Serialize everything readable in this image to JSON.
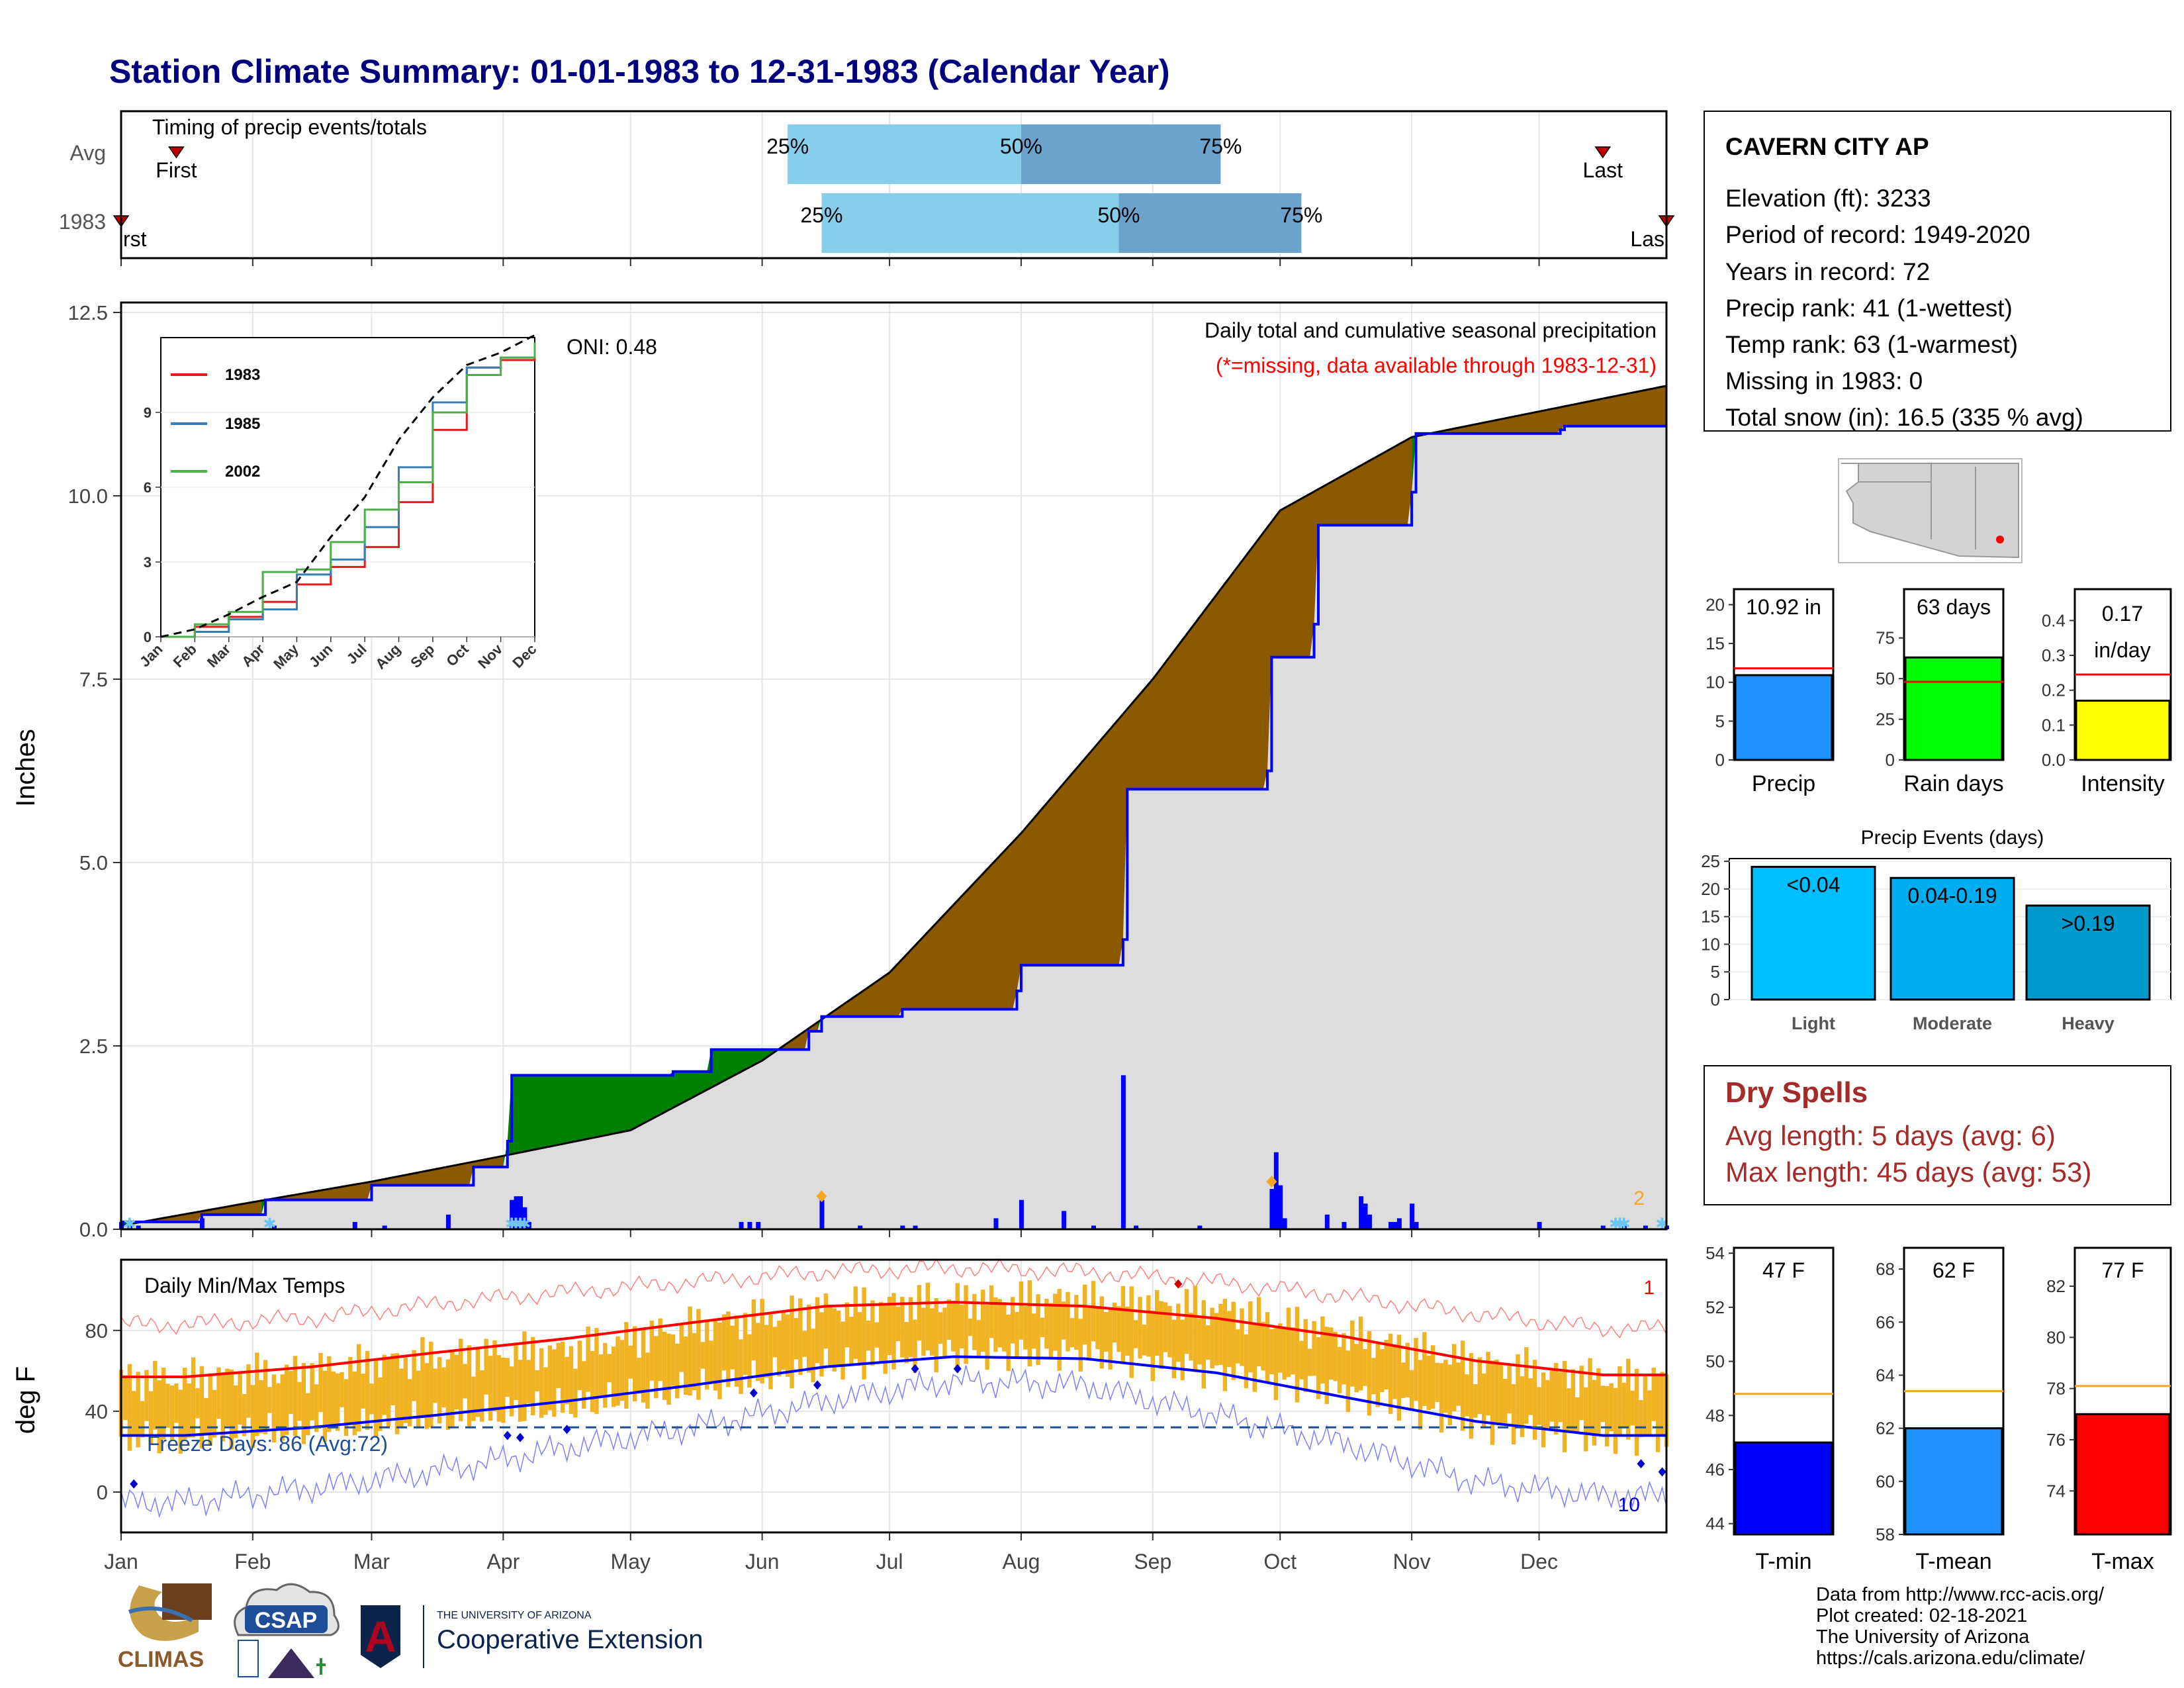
{
  "title": "Station Climate Summary: 01-01-1983 to 12-31-1983 (Calendar Year)",
  "months": [
    "Jan",
    "Feb",
    "Mar",
    "Apr",
    "May",
    "Jun",
    "Jul",
    "Aug",
    "Sep",
    "Oct",
    "Nov",
    "Dec"
  ],
  "colors": {
    "title": "#00007f",
    "quartile_light": "#87ceeb",
    "quartile_dark": "#6ba3cc",
    "cum_above": "#8b5a00",
    "cum_below": "#008000",
    "cum_fill": "#dddddd",
    "daily_bar": "#0000ff",
    "temp_range": "#f0b323",
    "avg_max": "#ff0000",
    "avg_min": "#0000ff",
    "dry_spells": "#a52a2a"
  },
  "timing": {
    "title": "Timing of precip events/totals",
    "rows": [
      "Avg",
      "1983"
    ],
    "first_label": "First",
    "last_label": "Last",
    "first_label_clipped": "rst",
    "last_label_clipped": "Las",
    "pct_labels": [
      "25%",
      "50%",
      "75%"
    ]
  },
  "main": {
    "ylabel": "Inches",
    "header": "Daily total and cumulative seasonal precipitation",
    "subheader": "(*=missing, data available through 1983-12-31)",
    "oni": "ONI: 0.48",
    "corner_count": "2"
  },
  "inset": {
    "legend": [
      "1983",
      "1985",
      "2002"
    ],
    "series_colors": [
      "#e41a1c",
      "#377eb8",
      "#4daf4a"
    ],
    "months": [
      "Jan",
      "Feb",
      "Mar",
      "Apr",
      "May",
      "Jun",
      "Jul",
      "Aug",
      "Sep",
      "Oct",
      "Nov",
      "Dec"
    ]
  },
  "temps": {
    "ylabel": "deg F",
    "title": "Daily Min/Max Temps",
    "freeze": "Freeze Days: 86 (Avg:72)",
    "corner_top": "1",
    "corner_bottom": "10"
  },
  "station": {
    "name": "CAVERN CITY AP",
    "lines": [
      "Elevation (ft): 3233",
      "Period of record: 1949-2020",
      "Years in record: 72",
      "Precip rank: 41 (1-wettest)",
      "Temp rank: 63 (1-warmest)",
      "Missing in 1983: 0",
      "Total snow (in): 16.5 (335 % avg)"
    ]
  },
  "mini_bars": [
    {
      "label": "Precip",
      "value_text": "10.92 in",
      "color": "#1e90ff"
    },
    {
      "label": "Rain days",
      "value_text": "63 days",
      "color": "#00ff00"
    },
    {
      "label": "Intensity",
      "value_text_1": "0.17",
      "value_text_2": "in/day",
      "color": "#ffff00"
    }
  ],
  "events": {
    "title": "Precip Events (days)",
    "labels": [
      "<0.04",
      "0.04-0.19",
      ">0.19"
    ],
    "categories": [
      "Light",
      "Moderate",
      "Heavy"
    ],
    "colors": [
      "#00bfff",
      "#00aeef",
      "#0099cc"
    ]
  },
  "dry_spells": {
    "title": "Dry Spells",
    "avg": "Avg length: 5 days (avg: 6)",
    "max": "Max length: 45 days (avg: 53)"
  },
  "temp_bars": [
    {
      "value_text": "47 F",
      "label": "T-min",
      "color": "#0000ff"
    },
    {
      "value_text": "62 F",
      "label": "T-mean",
      "color": "#1e90ff"
    },
    {
      "value_text": "77 F",
      "label": "T-max",
      "color": "#ff0000"
    }
  ],
  "credits": [
    "Data from http://www.rcc-acis.org/",
    "Plot created: 02-18-2021",
    "The University of Arizona",
    "https://cals.arizona.edu/climate/"
  ],
  "logos": {
    "climas": "CLIMAS",
    "csap": "CSAP",
    "ua_small": "THE UNIVERSITY OF ARIZONA",
    "ua_big": "Cooperative Extension",
    "ua_letter": "A"
  },
  "chart_data": [
    {
      "type": "bar",
      "title": "Timing of precip events/totals",
      "categories": [
        "Avg",
        "1983"
      ],
      "series": [
        {
          "name": "First",
          "values": [
            14,
            1
          ]
        },
        {
          "name": "25%",
          "values": [
            158,
            166
          ]
        },
        {
          "name": "50%",
          "values": [
            213,
            236
          ]
        },
        {
          "name": "75%",
          "values": [
            260,
            279
          ]
        },
        {
          "name": "Last",
          "values": [
            350,
            365
          ]
        }
      ],
      "xlim": [
        1,
        365
      ]
    },
    {
      "type": "area",
      "title": "Daily total and cumulative seasonal precipitation",
      "ylabel": "Inches",
      "ylim": [
        0,
        12.5
      ],
      "yticks": [
        0.0,
        2.5,
        5.0,
        7.5,
        10.0,
        12.5
      ],
      "series": [
        {
          "name": "1983",
          "x": [
            1,
            20,
            35,
            60,
            84,
            92,
            93,
            127,
            131,
            140,
            163,
            166,
            185,
            212,
            213,
            237,
            238,
            271,
            272,
            282,
            283,
            305,
            306,
            340,
            341,
            365
          ],
          "values": [
            0.1,
            0.2,
            0.4,
            0.6,
            0.85,
            1.2,
            2.1,
            2.1,
            2.15,
            2.45,
            2.7,
            2.9,
            3.0,
            3.25,
            3.6,
            3.95,
            6.0,
            6.25,
            7.8,
            8.25,
            9.6,
            10.05,
            10.85,
            10.9,
            10.95,
            10.95
          ]
        },
        {
          "name": "Average",
          "x": [
            1,
            30,
            60,
            91,
            121,
            152,
            182,
            213,
            244,
            274,
            305,
            335,
            365
          ],
          "values": [
            0.05,
            0.35,
            0.65,
            1.0,
            1.35,
            2.3,
            3.5,
            5.4,
            7.5,
            9.8,
            10.8,
            11.15,
            11.5
          ]
        }
      ],
      "daily_bars": {
        "x": [
          1,
          3,
          5,
          20,
          37,
          56,
          63,
          78,
          93,
          94,
          95,
          96,
          97,
          147,
          149,
          151,
          166,
          175,
          185,
          188,
          207,
          213,
          223,
          230,
          237,
          240,
          255,
          272,
          273,
          274,
          275,
          285,
          289,
          293,
          294,
          295,
          300,
          301,
          302,
          305,
          306,
          335,
          350,
          355,
          360,
          365
        ],
        "values": [
          0.1,
          0.05,
          0.05,
          0.15,
          0.05,
          0.1,
          0.05,
          0.2,
          0.4,
          0.45,
          0.45,
          0.3,
          0.1,
          0.1,
          0.1,
          0.1,
          0.4,
          0.05,
          0.05,
          0.05,
          0.15,
          0.4,
          0.25,
          0.05,
          2.1,
          0.05,
          0.05,
          0.55,
          1.05,
          0.6,
          0.15,
          0.2,
          0.1,
          0.45,
          0.35,
          0.2,
          0.1,
          0.1,
          0.15,
          0.35,
          0.1,
          0.1,
          0.05,
          0.1,
          0.05,
          0.05
        ]
      },
      "ONI": 0.48
    },
    {
      "type": "line",
      "title": "",
      "categories": [
        "Jan",
        "Feb",
        "Mar",
        "Apr",
        "May",
        "Jun",
        "Jul",
        "Aug",
        "Sep",
        "Oct",
        "Nov",
        "Dec"
      ],
      "ylim": [
        0,
        12
      ],
      "yticks": [
        0,
        3,
        6,
        9
      ],
      "series": [
        {
          "name": "1983",
          "values": [
            0.0,
            0.4,
            0.8,
            1.4,
            2.1,
            2.8,
            3.6,
            5.4,
            8.3,
            10.8,
            11.1,
            11.5
          ]
        },
        {
          "name": "1985",
          "values": [
            0.0,
            0.2,
            0.7,
            1.1,
            2.5,
            3.1,
            4.4,
            6.8,
            9.4,
            10.8,
            11.2,
            11.3
          ]
        },
        {
          "name": "2002",
          "values": [
            0.0,
            0.5,
            1.0,
            2.6,
            2.7,
            3.8,
            5.1,
            6.2,
            9.0,
            10.5,
            11.2,
            11.8
          ]
        },
        {
          "name": "",
          "values": [
            0.0,
            0.3,
            0.9,
            1.6,
            2.2,
            4.0,
            5.6,
            7.9,
            9.6,
            10.9,
            11.4,
            12.1
          ]
        }
      ]
    },
    {
      "type": "line",
      "title": "Daily Min/Max Temps",
      "ylabel": "deg F",
      "ylim": [
        -20,
        115
      ],
      "yticks": [
        0,
        40,
        80
      ],
      "categories": [
        "Jan",
        "Feb",
        "Mar",
        "Apr",
        "May",
        "Jun",
        "Jul",
        "Aug",
        "Sep",
        "Oct",
        "Nov",
        "Dec"
      ],
      "series": [
        {
          "name": "avg max",
          "values": [
            57,
            62,
            69,
            76,
            84,
            92,
            94,
            92,
            86,
            77,
            65,
            58
          ]
        },
        {
          "name": "avg min",
          "values": [
            28,
            32,
            38,
            45,
            53,
            62,
            67,
            66,
            59,
            47,
            35,
            28
          ]
        },
        {
          "name": "record high",
          "values": [
            83,
            86,
            93,
            99,
            104,
            109,
            111,
            109,
            104,
            97,
            88,
            81
          ]
        },
        {
          "name": "record low",
          "values": [
            -5,
            2,
            10,
            22,
            32,
            45,
            55,
            53,
            38,
            24,
            5,
            -2
          ]
        },
        {
          "name": "1983 max",
          "values": [
            56,
            60,
            67,
            70,
            82,
            91,
            95,
            95,
            91,
            78,
            64,
            56
          ]
        },
        {
          "name": "1983 min",
          "values": [
            27,
            31,
            36,
            42,
            51,
            62,
            69,
            69,
            60,
            50,
            34,
            27
          ]
        }
      ],
      "freeze_line": 32,
      "freeze_days": 86
    },
    {
      "type": "bar",
      "title": "",
      "categories": [
        "Precip",
        "Rain days",
        "Intensity"
      ],
      "series": [
        {
          "name": "1983",
          "values": [
            10.92,
            63,
            0.17
          ]
        },
        {
          "name": "avg",
          "values": [
            11.8,
            48,
            0.245
          ]
        }
      ],
      "ylims": [
        [
          0,
          22
        ],
        [
          0,
          105
        ],
        [
          0,
          0.49
        ]
      ]
    },
    {
      "type": "bar",
      "title": "Precip Events (days)",
      "categories": [
        "Light",
        "Moderate",
        "Heavy"
      ],
      "values": [
        24,
        22,
        17
      ],
      "ylim": [
        0,
        25.5
      ]
    },
    {
      "type": "bar",
      "title": "",
      "categories": [
        "T-min",
        "T-mean",
        "T-max"
      ],
      "series": [
        {
          "name": "1983",
          "values": [
            47,
            62,
            77
          ]
        },
        {
          "name": "avg",
          "values": [
            48.8,
            63.4,
            78.1
          ]
        }
      ],
      "ylims": [
        [
          43.6,
          54.2
        ],
        [
          58,
          68.8
        ],
        [
          72.3,
          83.5
        ]
      ]
    }
  ]
}
